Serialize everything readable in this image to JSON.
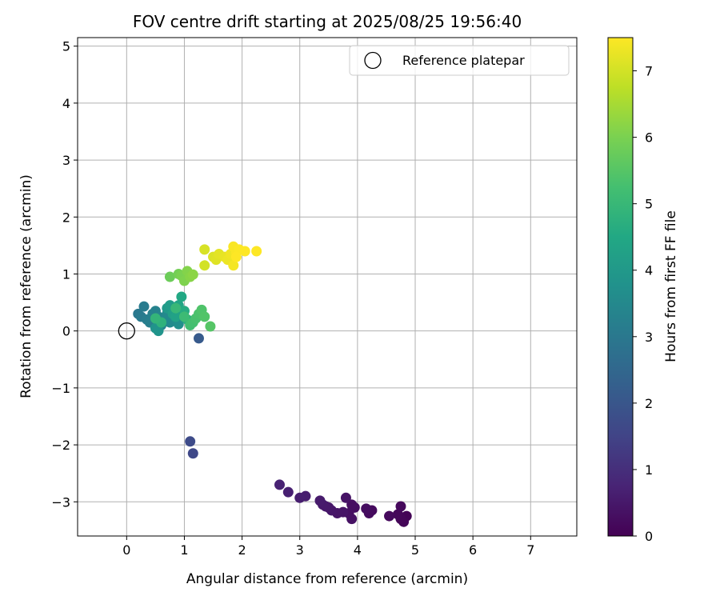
{
  "chart_data": {
    "type": "scatter",
    "title": "FOV centre drift starting at 2025/08/25 19:56:40",
    "xlabel": "Angular distance from reference (arcmin)",
    "ylabel": "Rotation from reference (arcmin)",
    "xlim": [
      -0.85,
      7.8
    ],
    "ylim": [
      -3.6,
      5.15
    ],
    "xticks": [
      0,
      1,
      2,
      3,
      4,
      5,
      6,
      7
    ],
    "yticks": [
      -3,
      -2,
      -1,
      0,
      1,
      2,
      3,
      4,
      5
    ],
    "xtick_labels": [
      "0",
      "1",
      "2",
      "3",
      "4",
      "5",
      "6",
      "7"
    ],
    "ytick_labels": [
      "−3",
      "−2",
      "−1",
      "0",
      "1",
      "2",
      "3",
      "4",
      "5"
    ],
    "grid": true,
    "legend": {
      "position": "top-right",
      "entries": [
        "Reference platepar"
      ]
    },
    "reference_point": {
      "x": 0,
      "y": 0,
      "label": "Reference platepar"
    },
    "colorbar": {
      "label": "Hours from first FF file",
      "colormap": "viridis",
      "range": [
        0,
        7.5
      ],
      "ticks": [
        0,
        1,
        2,
        3,
        4,
        5,
        6,
        7
      ],
      "tick_labels": [
        "0",
        "1",
        "2",
        "3",
        "4",
        "5",
        "6",
        "7"
      ]
    },
    "series": [
      {
        "values": [
          [
            4.85,
            -3.25,
            0.05
          ],
          [
            4.8,
            -3.35,
            0.08
          ],
          [
            4.75,
            -3.3,
            0.1
          ],
          [
            4.7,
            -3.22,
            0.12
          ],
          [
            4.75,
            -3.08,
            0.15
          ],
          [
            4.55,
            -3.25,
            0.18
          ],
          [
            4.25,
            -3.15,
            0.2
          ],
          [
            4.2,
            -3.2,
            0.22
          ],
          [
            4.15,
            -3.12,
            0.25
          ],
          [
            3.95,
            -3.1,
            0.28
          ],
          [
            3.9,
            -3.05,
            0.3
          ],
          [
            3.85,
            -3.2,
            0.32
          ],
          [
            3.9,
            -3.3,
            0.35
          ],
          [
            3.8,
            -2.93,
            0.38
          ],
          [
            3.75,
            -3.18,
            0.4
          ],
          [
            3.65,
            -3.2,
            0.42
          ],
          [
            3.55,
            -3.15,
            0.45
          ],
          [
            3.5,
            -3.1,
            0.48
          ],
          [
            3.45,
            -3.08,
            0.5
          ],
          [
            3.4,
            -3.05,
            0.52
          ],
          [
            3.35,
            -2.98,
            0.55
          ],
          [
            3.1,
            -2.9,
            0.6
          ],
          [
            3.0,
            -2.93,
            0.62
          ],
          [
            2.8,
            -2.83,
            0.65
          ],
          [
            2.65,
            -2.7,
            0.7
          ],
          [
            1.15,
            -2.15,
            1.6
          ],
          [
            1.1,
            -1.94,
            1.7
          ],
          [
            1.25,
            -0.13,
            2.1
          ],
          [
            0.2,
            0.3,
            3.0
          ],
          [
            0.25,
            0.25,
            3.05
          ],
          [
            0.3,
            0.43,
            3.1
          ],
          [
            0.35,
            0.2,
            3.15
          ],
          [
            0.4,
            0.15,
            3.2
          ],
          [
            0.45,
            0.3,
            3.25
          ],
          [
            0.5,
            0.35,
            3.3
          ],
          [
            0.55,
            0.25,
            3.35
          ],
          [
            0.6,
            0.1,
            3.4
          ],
          [
            0.65,
            0.2,
            3.45
          ],
          [
            0.7,
            0.3,
            3.5
          ],
          [
            0.75,
            0.15,
            3.55
          ],
          [
            0.8,
            0.35,
            3.6
          ],
          [
            0.85,
            0.22,
            3.65
          ],
          [
            0.9,
            0.12,
            3.7
          ],
          [
            0.95,
            0.28,
            3.75
          ],
          [
            0.5,
            0.05,
            3.8
          ],
          [
            0.55,
            0.0,
            3.85
          ],
          [
            0.7,
            0.4,
            4.0
          ],
          [
            0.75,
            0.45,
            4.1
          ],
          [
            0.8,
            0.3,
            4.2
          ],
          [
            0.85,
            0.25,
            4.3
          ],
          [
            0.9,
            0.45,
            4.4
          ],
          [
            0.95,
            0.6,
            4.5
          ],
          [
            1.0,
            0.35,
            4.6
          ],
          [
            1.05,
            0.2,
            4.7
          ],
          [
            0.6,
            0.15,
            4.8
          ],
          [
            0.5,
            0.22,
            4.9
          ],
          [
            0.85,
            0.4,
            5.0
          ],
          [
            1.0,
            0.25,
            5.1
          ],
          [
            1.1,
            0.1,
            5.2
          ],
          [
            1.15,
            0.15,
            5.25
          ],
          [
            1.2,
            0.22,
            5.3
          ],
          [
            1.25,
            0.3,
            5.35
          ],
          [
            1.3,
            0.37,
            5.4
          ],
          [
            1.35,
            0.25,
            5.45
          ],
          [
            1.45,
            0.08,
            5.5
          ],
          [
            0.75,
            0.95,
            5.8
          ],
          [
            0.9,
            1.0,
            5.9
          ],
          [
            0.95,
            0.97,
            6.0
          ],
          [
            1.0,
            0.88,
            6.05
          ],
          [
            1.05,
            1.05,
            6.1
          ],
          [
            1.1,
            0.95,
            6.15
          ],
          [
            1.15,
            0.99,
            6.2
          ],
          [
            1.35,
            1.15,
            7.0
          ],
          [
            1.35,
            1.43,
            7.05
          ],
          [
            1.5,
            1.3,
            7.1
          ],
          [
            1.55,
            1.25,
            7.15
          ],
          [
            1.6,
            1.35,
            7.2
          ],
          [
            1.7,
            1.3,
            7.25
          ],
          [
            1.75,
            1.25,
            7.3
          ],
          [
            1.8,
            1.35,
            7.35
          ],
          [
            1.85,
            1.15,
            7.4
          ],
          [
            1.85,
            1.48,
            7.45
          ],
          [
            1.9,
            1.38,
            7.45
          ],
          [
            1.95,
            1.43,
            7.48
          ],
          [
            2.05,
            1.4,
            7.5
          ],
          [
            2.25,
            1.4,
            7.5
          ],
          [
            1.9,
            1.3,
            7.5
          ]
        ]
      }
    ]
  }
}
